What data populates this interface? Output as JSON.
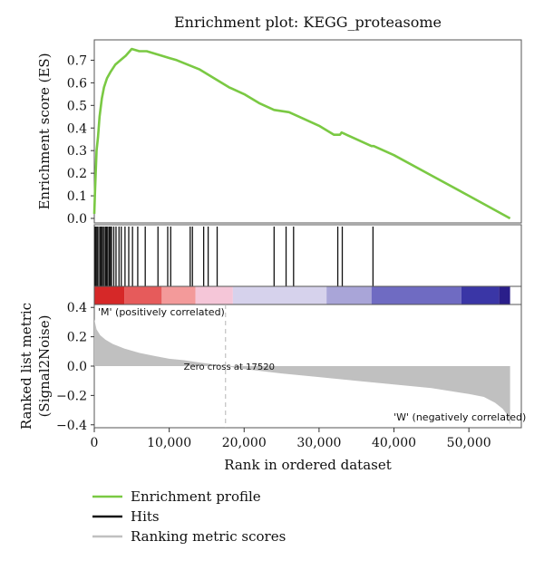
{
  "chart_data": {
    "type": "line",
    "title": "Enrichment plot: KEGG_proteasome",
    "xlabel": "Rank in ordered dataset",
    "xlim": [
      0,
      57000
    ],
    "x_ticks": [
      0,
      10000,
      20000,
      30000,
      40000,
      50000
    ],
    "x_tick_labels": [
      "0",
      "10,000",
      "20,000",
      "30,000",
      "40,000",
      "50,000"
    ],
    "es_panel": {
      "ylabel": "Enrichment score (ES)",
      "ylim": [
        -0.02,
        0.79
      ],
      "y_ticks": [
        0.0,
        0.1,
        0.2,
        0.3,
        0.4,
        0.5,
        0.6,
        0.7
      ],
      "y_tick_labels": [
        "0.0",
        "0.1",
        "0.2",
        "0.3",
        "0.4",
        "0.5",
        "0.6",
        "0.7"
      ],
      "series": [
        {
          "name": "Enrichment profile",
          "color": "#7ac943",
          "x": [
            0,
            100,
            300,
            500,
            700,
            1000,
            1300,
            1700,
            2200,
            2800,
            3500,
            4200,
            5000,
            6000,
            7000,
            8000,
            9000,
            10000,
            11000,
            12500,
            14000,
            16000,
            18000,
            20000,
            22000,
            24000,
            26000,
            28000,
            30000,
            32000,
            32800,
            33000,
            35000,
            37000,
            37300,
            40000,
            45000,
            50000,
            55500
          ],
          "y": [
            0.02,
            0.12,
            0.3,
            0.36,
            0.45,
            0.53,
            0.58,
            0.62,
            0.65,
            0.68,
            0.7,
            0.72,
            0.75,
            0.74,
            0.74,
            0.73,
            0.72,
            0.71,
            0.7,
            0.68,
            0.66,
            0.62,
            0.58,
            0.55,
            0.51,
            0.48,
            0.47,
            0.44,
            0.41,
            0.37,
            0.37,
            0.38,
            0.35,
            0.32,
            0.32,
            0.28,
            0.19,
            0.1,
            0.0
          ]
        }
      ]
    },
    "hits_panel": {
      "legend_label": "Hits",
      "color": "#111111",
      "hit_positions": [
        100,
        250,
        400,
        600,
        800,
        950,
        1100,
        1300,
        1500,
        1650,
        1800,
        2000,
        2150,
        2300,
        2600,
        2900,
        3300,
        3600,
        4100,
        4600,
        5100,
        5800,
        6800,
        8500,
        9800,
        10200,
        12800,
        13100,
        14600,
        15200,
        16400,
        24000,
        25600,
        26600,
        32500,
        33100,
        37200
      ],
      "color_bar": [
        {
          "from": 0,
          "to": 4000,
          "color": "#d62828"
        },
        {
          "from": 4000,
          "to": 9000,
          "color": "#e65b5b"
        },
        {
          "from": 9000,
          "to": 13500,
          "color": "#f39a9a"
        },
        {
          "from": 13500,
          "to": 18500,
          "color": "#f5c6d8"
        },
        {
          "from": 18500,
          "to": 31000,
          "color": "#d6d2ec"
        },
        {
          "from": 31000,
          "to": 37000,
          "color": "#a9a5d8"
        },
        {
          "from": 37000,
          "to": 49000,
          "color": "#6f6bc2"
        },
        {
          "from": 49000,
          "to": 54000,
          "color": "#3a36a6"
        },
        {
          "from": 54000,
          "to": 55500,
          "color": "#2a1e8a"
        }
      ]
    },
    "metric_panel": {
      "ylabel_line1": "Ranked list metric",
      "ylabel_line2": "(Signal2Noise)",
      "ylim": [
        -0.42,
        0.42
      ],
      "y_ticks": [
        0.4,
        0.2,
        0.0,
        -0.2,
        -0.4
      ],
      "y_tick_labels": [
        "0.4",
        "0.2",
        "0.0",
        "−0.2",
        "−0.4"
      ],
      "legend_label": "Ranking metric scores",
      "color": "#c0c0c0",
      "x": [
        0,
        300,
        800,
        1500,
        2500,
        4000,
        6000,
        8000,
        10000,
        12000,
        14000,
        16000,
        17520,
        20000,
        25000,
        30000,
        35000,
        40000,
        45000,
        50000,
        52000,
        53500,
        54500,
        55100,
        55500
      ],
      "y": [
        0.32,
        0.25,
        0.21,
        0.18,
        0.15,
        0.12,
        0.09,
        0.07,
        0.05,
        0.04,
        0.025,
        0.012,
        0.0,
        -0.02,
        -0.05,
        -0.075,
        -0.1,
        -0.125,
        -0.15,
        -0.19,
        -0.21,
        -0.25,
        -0.29,
        -0.33,
        -0.4
      ],
      "zero_cross_x": 17520,
      "zero_cross_label": "Zero cross at 17520",
      "pos_label": "'M' (positively correlated)",
      "neg_label": "'W' (negatively correlated)",
      "pos_label_color": "#e05050",
      "neg_label_color": "#4b44b3"
    },
    "legend": [
      {
        "label": "Enrichment profile",
        "color": "#7ac943"
      },
      {
        "label": "Hits",
        "color": "#111111"
      },
      {
        "label": "Ranking metric scores",
        "color": "#c0c0c0"
      }
    ],
    "legend_position": "bottom-left"
  }
}
